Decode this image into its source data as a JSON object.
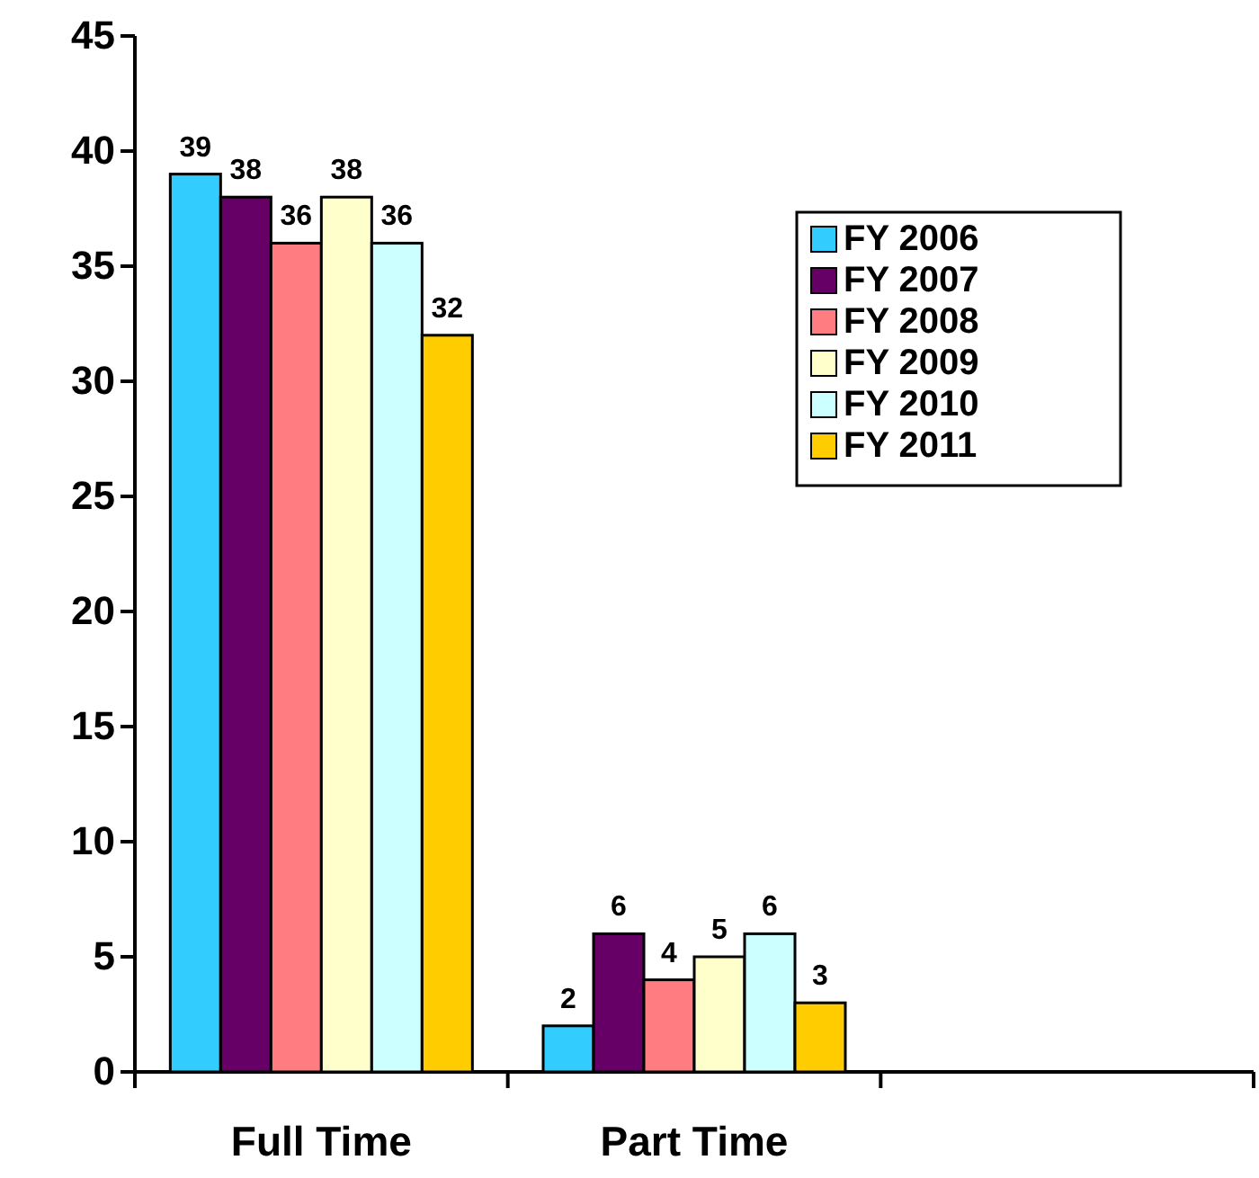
{
  "chart_data": {
    "type": "bar",
    "categories": [
      "Full Time",
      "Part Time",
      null
    ],
    "series": [
      {
        "name": "FY 2006",
        "color": "#33ccff",
        "values": [
          39,
          2,
          null
        ]
      },
      {
        "name": "FY 2007",
        "color": "#660066",
        "values": [
          38,
          6,
          null
        ]
      },
      {
        "name": "FY 2008",
        "color": "#ff7c80",
        "values": [
          36,
          4,
          null
        ]
      },
      {
        "name": "FY 2009",
        "color": "#ffffcc",
        "values": [
          38,
          5,
          null
        ]
      },
      {
        "name": "FY 2010",
        "color": "#ccffff",
        "values": [
          36,
          6,
          null
        ]
      },
      {
        "name": "FY 2011",
        "color": "#ffcc00",
        "values": [
          32,
          3,
          null
        ]
      }
    ],
    "ylim": [
      0,
      45
    ],
    "yticks": [
      0,
      5,
      10,
      15,
      20,
      25,
      30,
      35,
      40,
      45
    ],
    "data_labels": true,
    "legend": "top right",
    "grid": false
  }
}
